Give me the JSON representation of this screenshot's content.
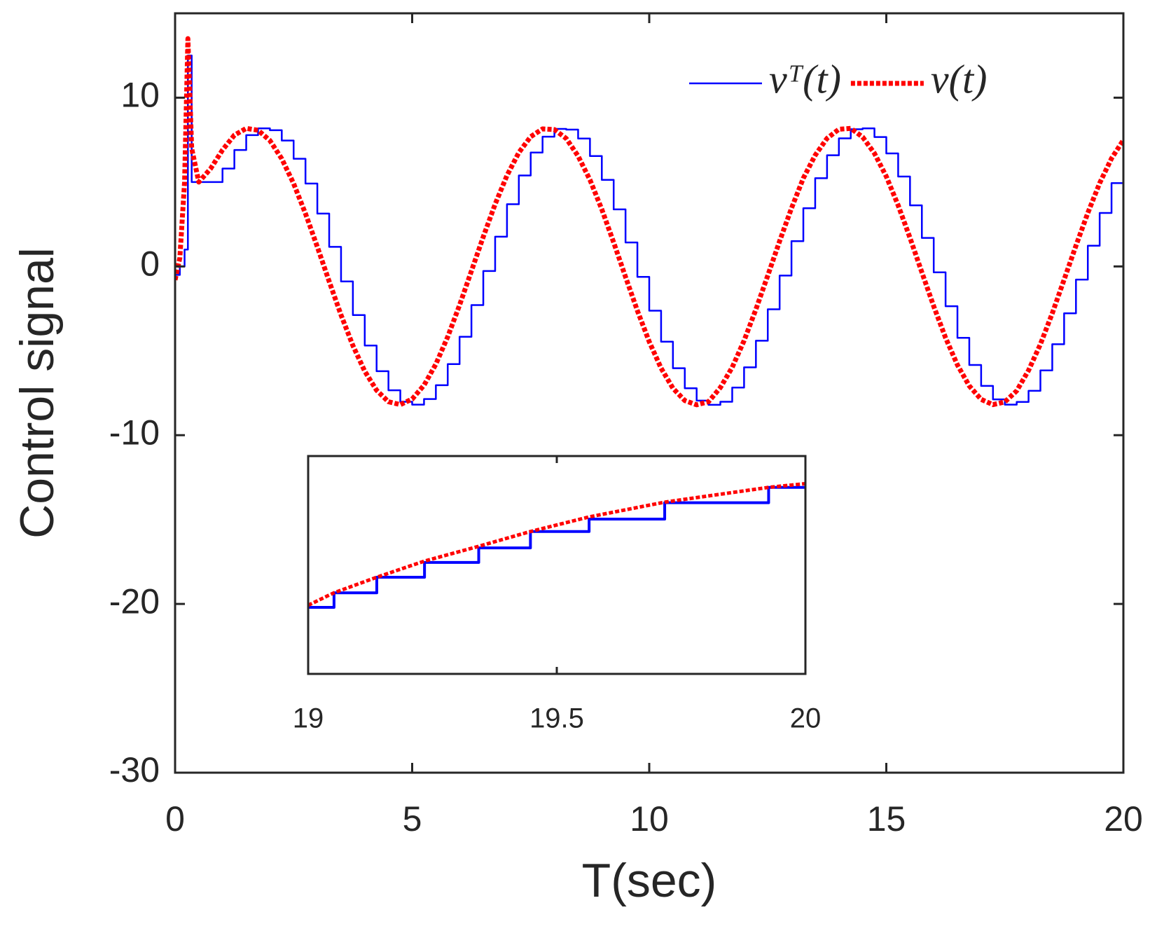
{
  "chart_data": [
    {
      "type": "line",
      "xlabel": "T(sec)",
      "ylabel": "Control signal",
      "xlim": [
        0,
        20
      ],
      "ylim": [
        -30,
        15
      ],
      "xticks": [
        0,
        5,
        10,
        15,
        20
      ],
      "yticks": [
        -30,
        -20,
        -10,
        0,
        10
      ],
      "legend": "upper right",
      "x": [
        0,
        0.1,
        0.2,
        0.27,
        0.35,
        0.5,
        0.75,
        1,
        1.25,
        1.5,
        1.75,
        2,
        2.25,
        2.5,
        2.75,
        3,
        3.25,
        3.5,
        3.75,
        4,
        4.25,
        4.5,
        4.75,
        5,
        5.25,
        5.5,
        5.75,
        6,
        6.25,
        6.5,
        6.75,
        7,
        7.25,
        7.5,
        7.75,
        8,
        8.25,
        8.5,
        8.75,
        9,
        9.25,
        9.5,
        9.75,
        10,
        10.25,
        10.5,
        10.75,
        11,
        11.25,
        11.5,
        11.75,
        12,
        12.25,
        12.5,
        12.75,
        13,
        13.25,
        13.5,
        13.75,
        14,
        14.25,
        14.5,
        14.75,
        15,
        15.25,
        15.5,
        15.75,
        16,
        16.25,
        16.5,
        16.75,
        17,
        17.25,
        17.5,
        17.75,
        18,
        18.25,
        18.5,
        18.75,
        19,
        19.25,
        19.5,
        19.75,
        20
      ],
      "series": [
        {
          "name": "vᵀ(t)",
          "color": "#0000ff",
          "style": "steps-post",
          "values": [
            -0.5,
            0,
            1,
            12.5,
            5,
            5,
            5,
            5.8,
            6.9,
            7.78,
            8.18,
            8.07,
            7.46,
            6.38,
            4.91,
            3.13,
            1.16,
            -0.89,
            -2.88,
            -4.69,
            -6.21,
            -7.34,
            -8.02,
            -8.19,
            -7.86,
            -7.04,
            -5.79,
            -4.17,
            -2.29,
            -0.27,
            1.76,
            3.69,
            5.39,
            6.75,
            7.69,
            8.15,
            8.11,
            7.58,
            6.54,
            5.13,
            3.38,
            1.42,
            -0.62,
            -2.62,
            -4.46,
            -6.03,
            -7.22,
            -7.95,
            -8.2,
            -8.02,
            -7.18,
            -5.98,
            -4.4,
            -2.54,
            -0.54,
            1.5,
            3.45,
            5.23,
            6.59,
            7.59,
            8.13,
            8.18,
            7.67,
            6.7,
            5.33,
            3.62,
            1.69,
            -0.35,
            -2.36,
            -4.23,
            -5.84,
            -7.08,
            -7.88,
            -8.19,
            -8.03,
            -7.37,
            -6.16,
            -4.61,
            -2.78,
            -0.78,
            1.23,
            3.17,
            4.94,
            6.4
          ]
        },
        {
          "name": "v(t)",
          "color": "#ff0000",
          "style": "dotted",
          "values": [
            -0.8,
            0.5,
            5,
            13.5,
            7,
            5,
            5.8,
            6.9,
            7.78,
            8.18,
            8.07,
            7.46,
            6.38,
            4.91,
            3.13,
            1.16,
            -0.89,
            -2.88,
            -4.69,
            -6.21,
            -7.34,
            -8.02,
            -8.19,
            -7.86,
            -7.04,
            -5.79,
            -4.17,
            -2.29,
            -0.27,
            1.76,
            3.69,
            5.39,
            6.75,
            7.69,
            8.15,
            8.11,
            7.58,
            6.54,
            5.13,
            3.38,
            1.42,
            -0.62,
            -2.62,
            -4.46,
            -6.03,
            -7.22,
            -7.95,
            -8.2,
            -8.02,
            -7.18,
            -5.98,
            -4.4,
            -2.54,
            -0.54,
            1.5,
            3.45,
            5.23,
            6.59,
            7.59,
            8.13,
            8.18,
            7.67,
            6.7,
            5.33,
            3.62,
            1.69,
            -0.35,
            -2.36,
            -4.23,
            -5.84,
            -7.08,
            -7.88,
            -8.19,
            -8.03,
            -7.37,
            -6.16,
            -4.61,
            -2.78,
            -0.78,
            1.23,
            3.17,
            4.94,
            6.4,
            7.49
          ]
        }
      ]
    },
    {
      "type": "line",
      "xlim": [
        19,
        20
      ],
      "ylim": [
        -2.3,
        8.9
      ],
      "xticks": [
        19,
        19.5,
        20
      ],
      "x": [
        19,
        19.052,
        19.138,
        19.234,
        19.343,
        19.447,
        19.565,
        19.717,
        19.926,
        20
      ],
      "series": [
        {
          "color": "#0000ff",
          "style": "steps-post",
          "values": [
            1.12,
            1.87,
            2.67,
            3.43,
            4.18,
            5.02,
            5.66,
            6.5,
            7.29,
            7.29
          ]
        },
        {
          "color": "#ff0000",
          "style": "dotted",
          "values": [
            1.23,
            1.87,
            2.67,
            3.5,
            4.26,
            5.02,
            5.77,
            6.53,
            7.29,
            7.48
          ]
        }
      ]
    }
  ]
}
